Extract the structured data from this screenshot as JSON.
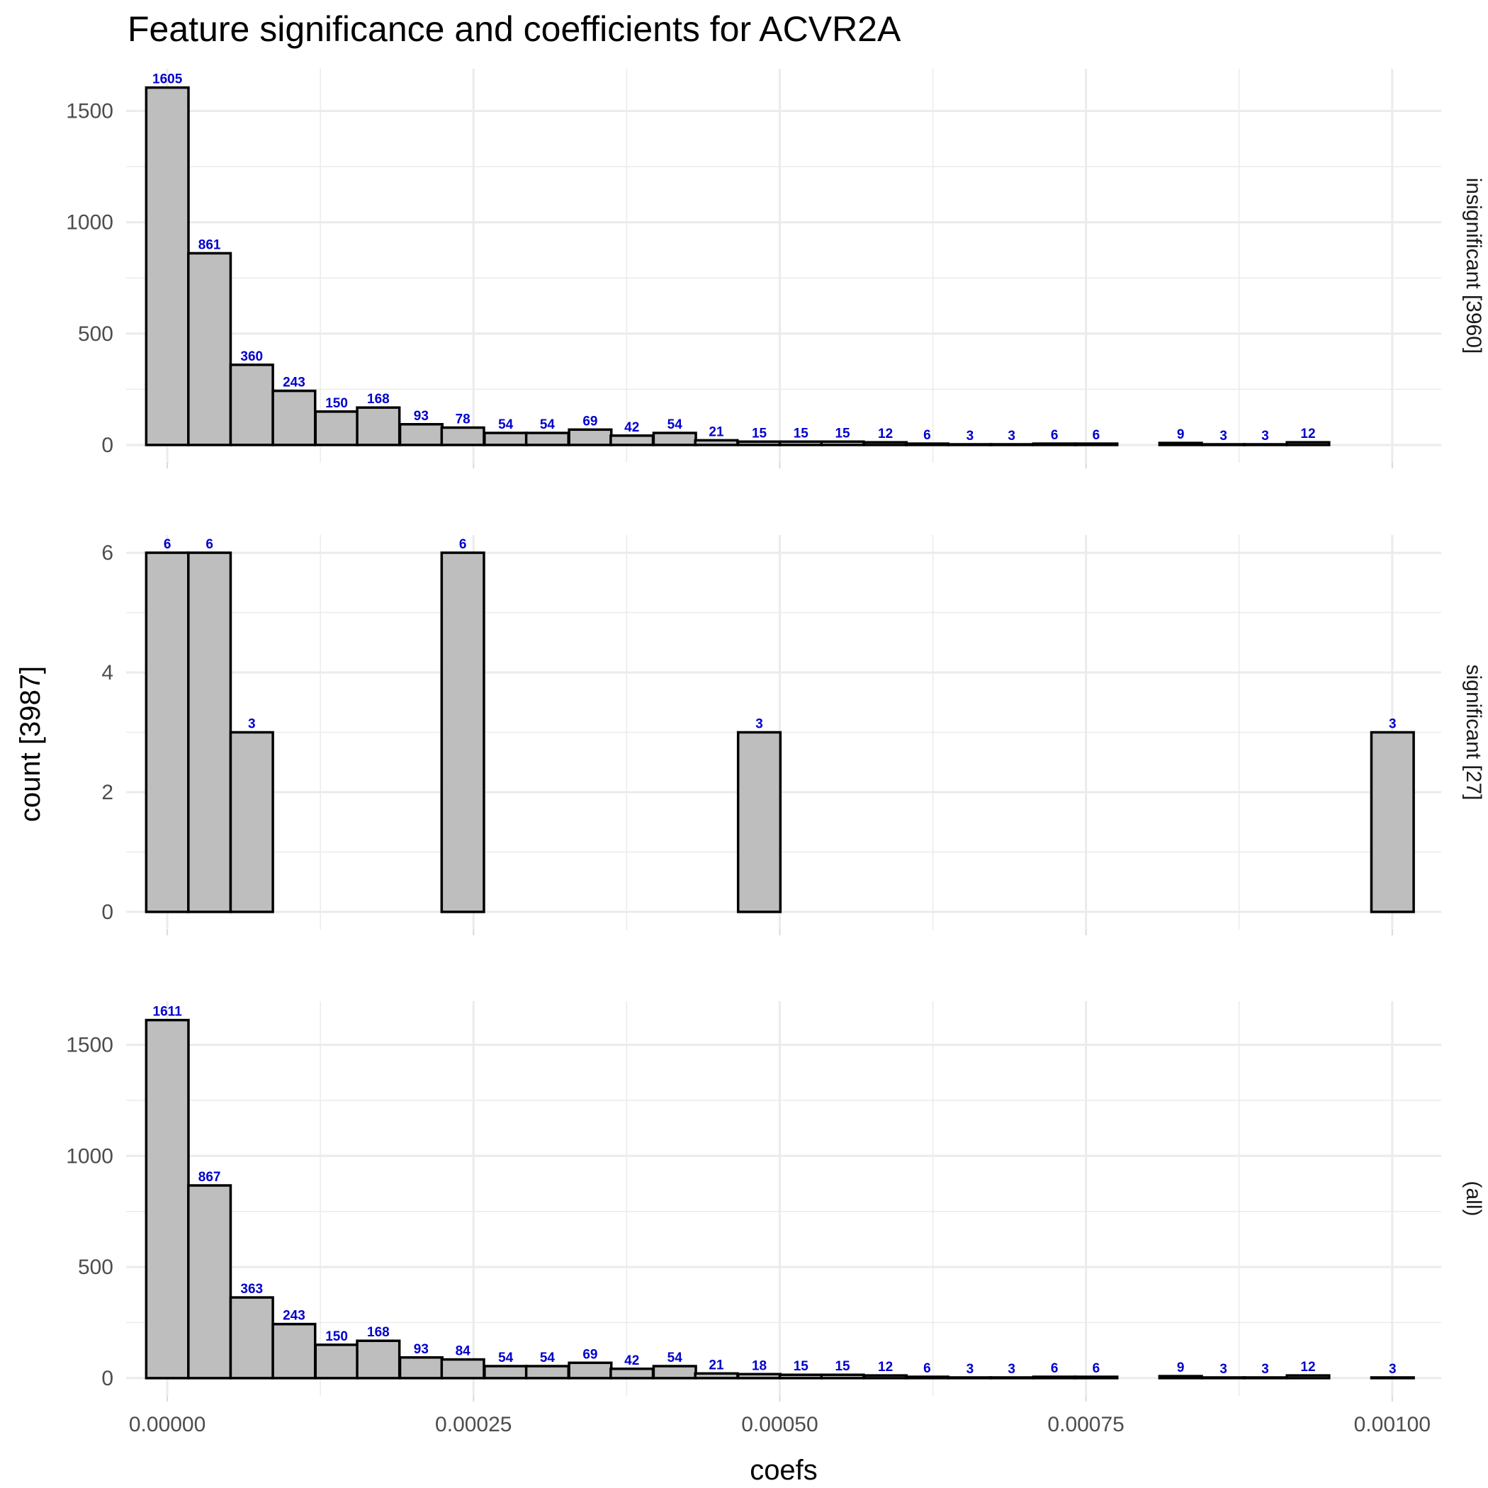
{
  "chart_data": {
    "type": "bar",
    "title": "Feature significance and coefficients for ACVR2A",
    "xlabel": "coefs",
    "ylabel": "count [3987]",
    "x_range": [
      -3.36e-05,
      0.00104
    ],
    "x_ticks": [
      0,
      0.00025,
      0.0005,
      0.00075,
      0.001
    ],
    "x_tick_labels": [
      "0.00000",
      "0.00025",
      "0.00050",
      "0.00075",
      "0.00100"
    ],
    "bin_starts": [
      -1.72e-05,
      1.72e-05,
      5.17e-05,
      8.62e-05,
      0.000121,
      0.000155,
      0.00019,
      0.000224,
      0.000259,
      0.000293,
      0.000328,
      0.000362,
      0.000397,
      0.000431,
      0.000466,
      0.0005,
      0.000534,
      0.000569,
      0.000603,
      0.000638,
      0.000672,
      0.000707,
      0.000741,
      0.000776,
      0.00081,
      0.000845,
      0.000879,
      0.000914,
      0.000948,
      0.000983
    ],
    "bin_width": 3.45e-05,
    "bar_fill": "#bebebe",
    "bar_stroke": "#000000",
    "label_color": "#0000cd",
    "grid": true,
    "panels": [
      {
        "strip": "insignificant [3960]",
        "y_ticks": [
          0,
          500,
          1000,
          1500
        ],
        "ylim": [
          0,
          1610
        ],
        "values": [
          1605,
          861,
          360,
          243,
          150,
          168,
          93,
          78,
          54,
          54,
          69,
          42,
          54,
          21,
          15,
          15,
          15,
          12,
          6,
          3,
          3,
          6,
          6,
          0,
          9,
          3,
          3,
          12,
          0,
          0
        ]
      },
      {
        "strip": "significant [27]",
        "y_ticks": [
          0,
          2,
          4,
          6
        ],
        "ylim": [
          0,
          6
        ],
        "values": [
          6,
          6,
          3,
          0,
          0,
          0,
          0,
          6,
          0,
          0,
          0,
          0,
          0,
          0,
          3,
          0,
          0,
          0,
          0,
          0,
          0,
          0,
          0,
          0,
          0,
          0,
          0,
          0,
          0,
          3
        ]
      },
      {
        "strip": "(all)",
        "y_ticks": [
          0,
          500,
          1000,
          1500
        ],
        "ylim": [
          0,
          1616
        ],
        "values": [
          1611,
          867,
          363,
          243,
          150,
          168,
          93,
          84,
          54,
          54,
          69,
          42,
          54,
          21,
          18,
          15,
          15,
          12,
          6,
          3,
          3,
          6,
          6,
          0,
          9,
          3,
          3,
          12,
          0,
          3
        ]
      }
    ]
  }
}
